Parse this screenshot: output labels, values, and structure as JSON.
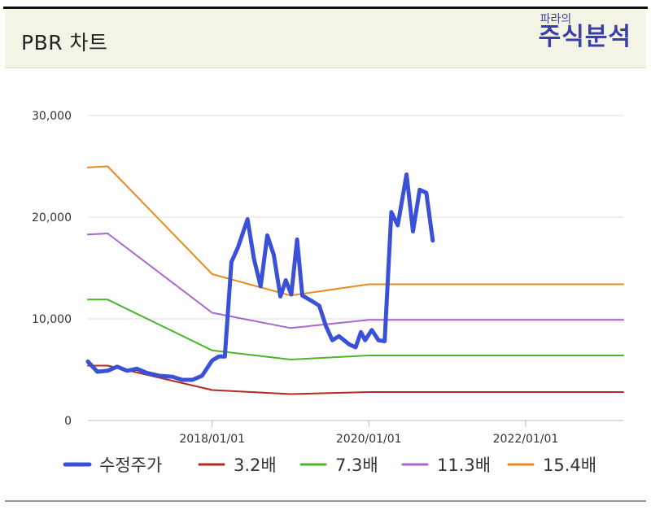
{
  "header": {
    "title": "PBR 차트",
    "logo_small": "파라의",
    "logo_big": "주식분석"
  },
  "chart_data": {
    "type": "line",
    "ylim": [
      0,
      30000
    ],
    "y_ticks": [
      0,
      10000,
      20000,
      30000
    ],
    "y_tick_labels": [
      "0",
      "10,000",
      "20,000",
      "30,000"
    ],
    "xlim": [
      "2016-06-01",
      "2023-04-01"
    ],
    "x_ticks": [
      "2018-01-01",
      "2020-01-01",
      "2022-01-01"
    ],
    "x_tick_labels": [
      "2018/01/01",
      "2020/01/01",
      "2022/01/01"
    ],
    "grid": true,
    "legend_position": "bottom",
    "series": [
      {
        "name": "수정주가",
        "color": "#3a50d8",
        "points": [
          [
            "2016-06-01",
            5800
          ],
          [
            "2016-07-15",
            4800
          ],
          [
            "2016-09-01",
            4900
          ],
          [
            "2016-10-15",
            5300
          ],
          [
            "2016-12-01",
            4900
          ],
          [
            "2017-01-15",
            5100
          ],
          [
            "2017-03-01",
            4700
          ],
          [
            "2017-05-01",
            4400
          ],
          [
            "2017-07-01",
            4300
          ],
          [
            "2017-08-15",
            4000
          ],
          [
            "2017-10-01",
            4000
          ],
          [
            "2017-11-15",
            4400
          ],
          [
            "2018-01-01",
            5900
          ],
          [
            "2018-02-01",
            6300
          ],
          [
            "2018-03-01",
            6300
          ],
          [
            "2018-04-01",
            15600
          ],
          [
            "2018-05-01",
            17000
          ],
          [
            "2018-06-15",
            19800
          ],
          [
            "2018-07-15",
            15900
          ],
          [
            "2018-08-15",
            13200
          ],
          [
            "2018-09-15",
            18200
          ],
          [
            "2018-10-15",
            16300
          ],
          [
            "2018-11-15",
            12200
          ],
          [
            "2018-12-10",
            13800
          ],
          [
            "2019-01-05",
            12400
          ],
          [
            "2019-02-01",
            17800
          ],
          [
            "2019-02-25",
            12300
          ],
          [
            "2019-04-15",
            11700
          ],
          [
            "2019-05-15",
            11300
          ],
          [
            "2019-06-15",
            9300
          ],
          [
            "2019-07-15",
            7900
          ],
          [
            "2019-08-15",
            8300
          ],
          [
            "2019-10-01",
            7500
          ],
          [
            "2019-11-01",
            7200
          ],
          [
            "2019-11-25",
            8700
          ],
          [
            "2019-12-15",
            7900
          ],
          [
            "2020-01-15",
            8900
          ],
          [
            "2020-02-15",
            7900
          ],
          [
            "2020-03-15",
            7800
          ],
          [
            "2020-04-15",
            20500
          ],
          [
            "2020-05-15",
            19200
          ],
          [
            "2020-06-25",
            24200
          ],
          [
            "2020-07-25",
            18600
          ],
          [
            "2020-08-25",
            22700
          ],
          [
            "2020-09-25",
            22400
          ],
          [
            "2020-10-25",
            17700
          ]
        ]
      },
      {
        "name": "3.2배",
        "color": "#b22a22",
        "points": [
          [
            "2016-06-01",
            5400
          ],
          [
            "2016-09-01",
            5400
          ],
          [
            "2018-01-01",
            3000
          ],
          [
            "2019-01-01",
            2600
          ],
          [
            "2020-01-01",
            2800
          ],
          [
            "2023-04-01",
            2800
          ]
        ]
      },
      {
        "name": "7.3배",
        "color": "#4cb52a",
        "points": [
          [
            "2016-06-01",
            11900
          ],
          [
            "2016-09-01",
            11900
          ],
          [
            "2018-01-01",
            6900
          ],
          [
            "2019-01-01",
            6000
          ],
          [
            "2020-01-01",
            6400
          ],
          [
            "2023-04-01",
            6400
          ]
        ]
      },
      {
        "name": "11.3배",
        "color": "#a866cc",
        "points": [
          [
            "2016-06-01",
            18300
          ],
          [
            "2016-09-01",
            18400
          ],
          [
            "2018-01-01",
            10600
          ],
          [
            "2019-01-01",
            9100
          ],
          [
            "2020-01-01",
            9900
          ],
          [
            "2023-04-01",
            9900
          ]
        ]
      },
      {
        "name": "15.4배",
        "color": "#e98a1c",
        "points": [
          [
            "2016-06-01",
            24900
          ],
          [
            "2016-09-01",
            25000
          ],
          [
            "2018-01-01",
            14400
          ],
          [
            "2019-01-01",
            12300
          ],
          [
            "2020-01-01",
            13400
          ],
          [
            "2023-04-01",
            13400
          ]
        ]
      }
    ]
  }
}
